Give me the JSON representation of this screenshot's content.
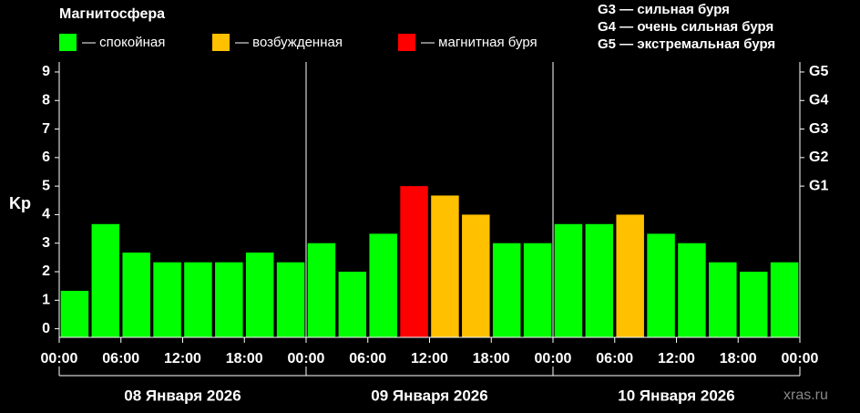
{
  "chart_data": {
    "type": "bar",
    "title": "Магнитосфера",
    "ylabel": "Kp",
    "legend": [
      {
        "label": "— спокойная",
        "color": "#00ff00"
      },
      {
        "label": "— возбужденная",
        "color": "#ffc000"
      },
      {
        "label": "— магнитная буря",
        "color": "#ff0000"
      }
    ],
    "notes": [
      "G3 — сильная буря",
      "G4 — очень сильная буря",
      "G5 — экстремальная буря"
    ],
    "watermark": "xras.ru",
    "x": [
      1.5,
      4.5,
      7.5,
      10.5,
      13.5,
      16.5,
      19.5,
      22.5,
      25.5,
      28.5,
      31.5,
      34.5,
      37.5,
      40.5,
      43.5,
      46.5,
      49.5,
      52.5,
      55.5,
      58.5,
      61.5,
      64.5,
      67.5,
      70.5
    ],
    "values": [
      1.33,
      3.67,
      2.67,
      2.33,
      2.33,
      2.33,
      2.67,
      2.33,
      3,
      2,
      3.33,
      5,
      4.67,
      4,
      3,
      3,
      3.67,
      3.67,
      4,
      3.33,
      3,
      2.33,
      2,
      2.33
    ],
    "colors": [
      "#00ff00",
      "#00ff00",
      "#00ff00",
      "#00ff00",
      "#00ff00",
      "#00ff00",
      "#00ff00",
      "#00ff00",
      "#00ff00",
      "#00ff00",
      "#00ff00",
      "#ff0000",
      "#ffc000",
      "#ffc000",
      "#00ff00",
      "#00ff00",
      "#00ff00",
      "#00ff00",
      "#ffc000",
      "#00ff00",
      "#00ff00",
      "#00ff00",
      "#00ff00",
      "#00ff00"
    ],
    "xlim": [
      0,
      72
    ],
    "xticks": [
      {
        "value": 0,
        "label": "00:00"
      },
      {
        "value": 6,
        "label": "06:00"
      },
      {
        "value": 12,
        "label": "12:00"
      },
      {
        "value": 18,
        "label": "18:00"
      },
      {
        "value": 24,
        "label": "00:00"
      },
      {
        "value": 30,
        "label": "06:00"
      },
      {
        "value": 36,
        "label": "12:00"
      },
      {
        "value": 42,
        "label": "18:00"
      },
      {
        "value": 48,
        "label": "00:00"
      },
      {
        "value": 54,
        "label": "06:00"
      },
      {
        "value": 60,
        "label": "12:00"
      },
      {
        "value": 66,
        "label": "18:00"
      },
      {
        "value": 72,
        "label": "00:00"
      }
    ],
    "day_labels": [
      "08 Января 2026",
      "09 Января 2026",
      "10 Января 2026"
    ],
    "ylim": [
      -0.3,
      9.35
    ],
    "yticks": [
      0,
      1,
      2,
      3,
      4,
      5,
      6,
      7,
      8,
      9
    ],
    "y2lim": [
      -0.3,
      9.35
    ],
    "y2ticks": [
      {
        "value": 5,
        "label": "G1"
      },
      {
        "value": 6,
        "label": "G2"
      },
      {
        "value": 7,
        "label": "G3"
      },
      {
        "value": 8,
        "label": "G4"
      },
      {
        "value": 9,
        "label": "G5"
      }
    ]
  }
}
